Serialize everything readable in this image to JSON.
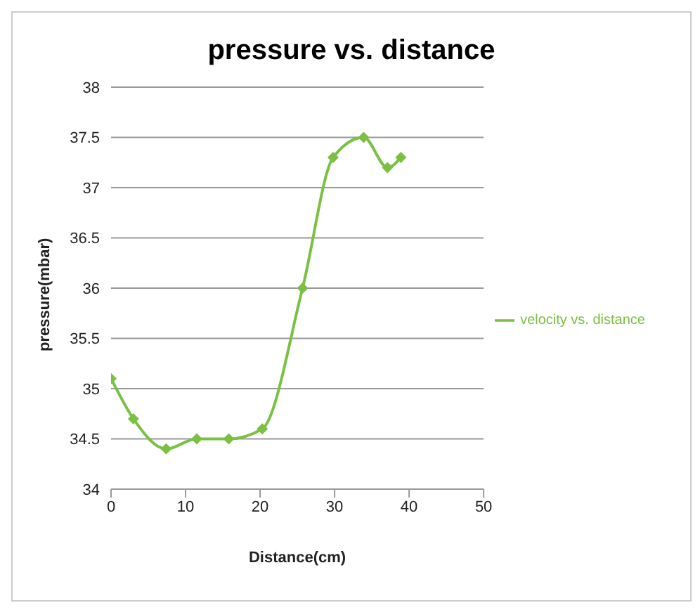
{
  "chart_data": {
    "type": "line",
    "title": "pressure vs. distance",
    "xlabel": "Distance(cm)",
    "ylabel": "pressure(mbar)",
    "x": [
      0,
      3,
      7.4,
      11.5,
      15.8,
      20.3,
      25.7,
      29.8,
      33.9,
      37.1,
      38.9
    ],
    "series": [
      {
        "name": "velocity vs. distance",
        "color": "#7ac143",
        "values": [
          35.1,
          34.7,
          34.4,
          34.5,
          34.5,
          34.6,
          36.0,
          37.3,
          37.5,
          37.2,
          37.3
        ]
      }
    ],
    "xlim": [
      0,
      50
    ],
    "xticks": [
      0,
      10,
      20,
      30,
      40,
      50
    ],
    "ylim": [
      34,
      38
    ],
    "yticks": [
      34,
      34.5,
      35,
      35.5,
      36,
      36.5,
      37,
      37.5,
      38
    ],
    "grid": "y",
    "legend": "right",
    "marker": "diamond",
    "line_style": "solid"
  }
}
